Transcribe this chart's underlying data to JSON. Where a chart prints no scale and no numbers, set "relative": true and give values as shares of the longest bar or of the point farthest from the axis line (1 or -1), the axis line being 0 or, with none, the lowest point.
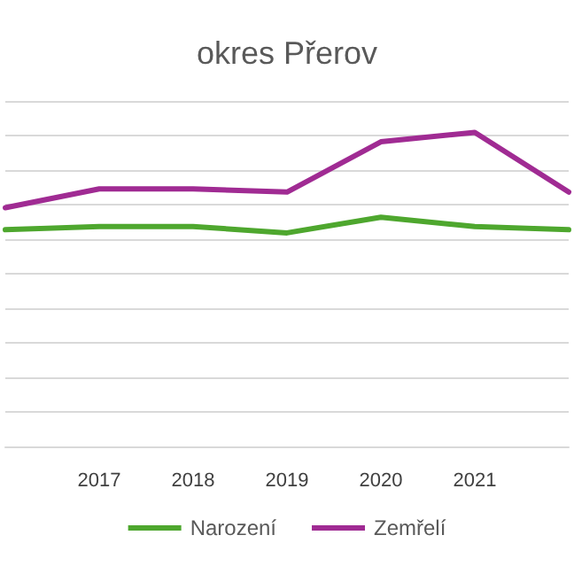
{
  "chart_data": {
    "type": "line",
    "title": "okres Přerov",
    "relative": true,
    "grid": "y",
    "legend": "bottom",
    "marker": "none",
    "line_style": "solid",
    "categories": [
      null,
      "2017",
      "2018",
      "2019",
      "2020",
      "2021",
      null
    ],
    "series": [
      {
        "name": "Narození",
        "color": "#4ea72e",
        "values": [
          0.69,
          0.7,
          0.7,
          0.68,
          0.73,
          0.7,
          0.69
        ]
      },
      {
        "name": "Zemřelí",
        "color": "#a02b93",
        "values": [
          0.76,
          0.82,
          0.82,
          0.81,
          0.97,
          1,
          0.81
        ]
      }
    ]
  }
}
